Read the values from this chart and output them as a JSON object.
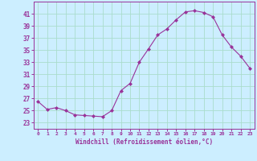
{
  "x": [
    0,
    1,
    2,
    3,
    4,
    5,
    6,
    7,
    8,
    9,
    10,
    11,
    12,
    13,
    14,
    15,
    16,
    17,
    18,
    19,
    20,
    21,
    22,
    23
  ],
  "y": [
    26.5,
    25.2,
    25.5,
    25.0,
    24.3,
    24.2,
    24.1,
    24.0,
    25.0,
    28.3,
    29.5,
    33.0,
    35.2,
    37.5,
    38.5,
    40.0,
    41.3,
    41.5,
    41.2,
    40.5,
    37.5,
    35.5,
    34.0,
    32.0
  ],
  "line_color": "#993399",
  "marker": "D",
  "marker_size": 2,
  "background_color": "#cceeff",
  "grid_color": "#aaddcc",
  "tick_label_color": "#993399",
  "xlabel": "Windchill (Refroidissement éolien,°C)",
  "ylabel": "",
  "ylim": [
    22,
    43
  ],
  "yticks": [
    23,
    25,
    27,
    29,
    31,
    33,
    35,
    37,
    39,
    41
  ],
  "xlim": [
    -0.5,
    23.5
  ],
  "xticks": [
    0,
    1,
    2,
    3,
    4,
    5,
    6,
    7,
    8,
    9,
    10,
    11,
    12,
    13,
    14,
    15,
    16,
    17,
    18,
    19,
    20,
    21,
    22,
    23
  ],
  "spine_color": "#993399"
}
